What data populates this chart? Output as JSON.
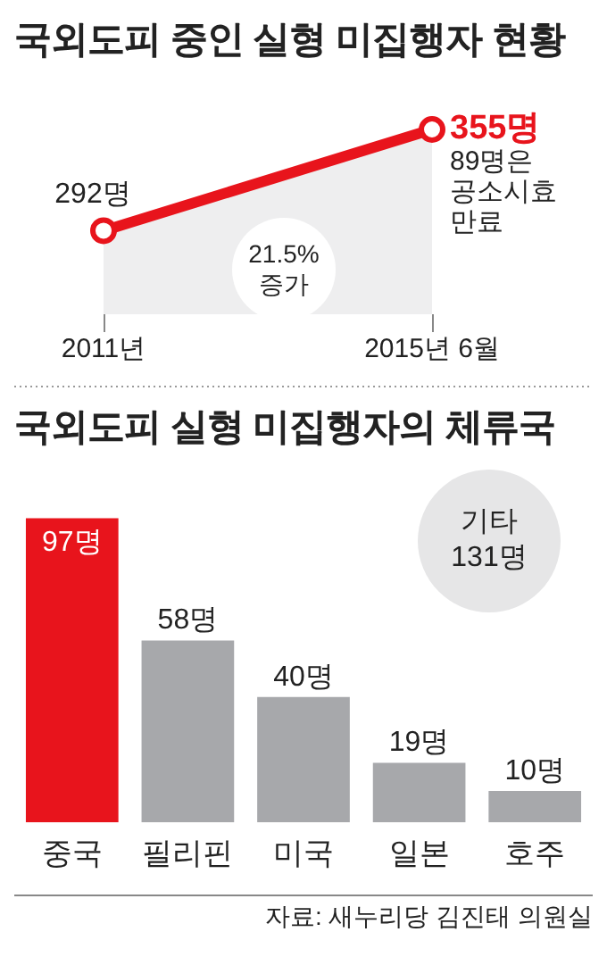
{
  "chart_data": [
    {
      "type": "area",
      "title": "국외도피 중인 실형 미집행자 현황",
      "categories": [
        "2011년",
        "2015년 6월"
      ],
      "series": [
        {
          "color": "#e8141c",
          "values": [
            292,
            355
          ],
          "value_labels": [
            "292명",
            "355명"
          ]
        }
      ],
      "marker": "circle",
      "tick_labels": "x",
      "grid": false,
      "legend": false,
      "annotations": [
        "21.5% 증가",
        "89명은 공소시효 만료"
      ]
    },
    {
      "type": "bar",
      "title": "국외도피 실형 미집행자의 체류국",
      "categories": [
        "중국",
        "필리핀",
        "미국",
        "일본",
        "호주"
      ],
      "values": [
        97,
        58,
        40,
        19,
        10
      ],
      "value_labels": [
        "97명",
        "58명",
        "40명",
        "19명",
        "10명"
      ],
      "colors": [
        "#e8141c",
        "#a7a8ab",
        "#a7a8ab",
        "#a7a8ab",
        "#a7a8ab"
      ],
      "tick_labels": "x",
      "grid": false,
      "legend": false,
      "annotations": [
        "기타 131명",
        "자료: 새누리당 김진태 의원실"
      ]
    }
  ]
}
